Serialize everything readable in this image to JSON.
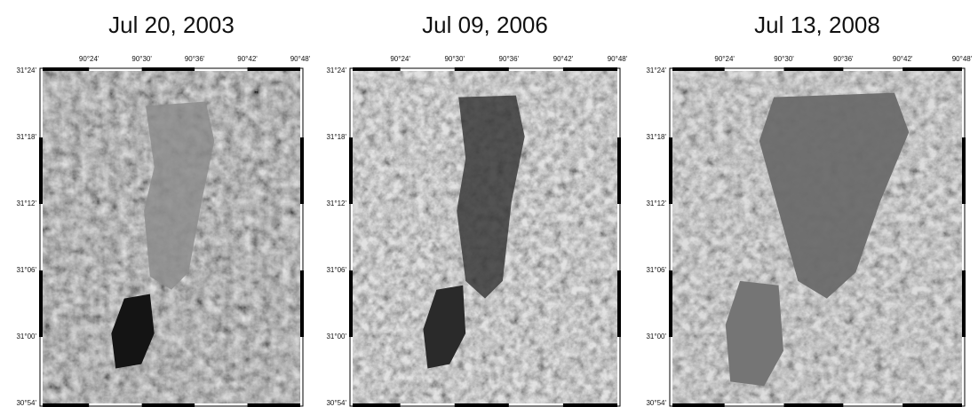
{
  "panels": [
    {
      "title": "Jul 20, 2003",
      "x_labels": [
        "90°24'",
        "90°30'",
        "90°36'",
        "90°42'",
        "90°48'"
      ],
      "y_labels": [
        "31°24'",
        "31°18'",
        "31°12'",
        "31°06'",
        "31°00'",
        "30°54'"
      ]
    },
    {
      "title": "Jul 09, 2006",
      "x_labels": [
        "90°24'",
        "90°30'",
        "90°36'",
        "90°42'",
        "90°48'"
      ],
      "y_labels": [
        "31°24'",
        "31°18'",
        "31°12'",
        "31°06'",
        "31°00'",
        "30°54'"
      ]
    },
    {
      "title": "Jul 13, 2008",
      "x_labels": [
        "90°24'",
        "90°30'",
        "90°36'",
        "90°42'",
        "90°48'"
      ],
      "y_labels": [
        "31°24'",
        "31°18'",
        "31°12'",
        "31°06'",
        "31°00'",
        "30°54'"
      ]
    }
  ]
}
